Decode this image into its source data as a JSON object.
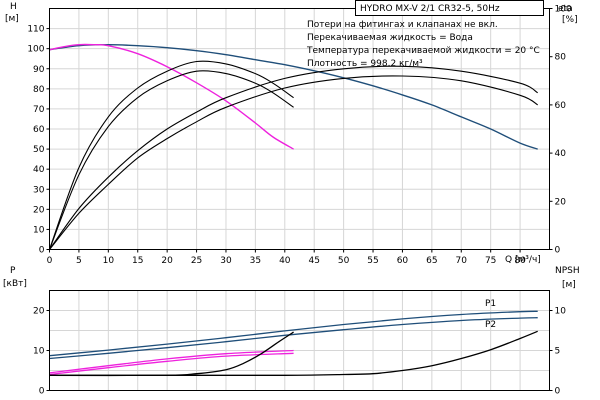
{
  "header": {
    "title": "HYDRO MX-V 2/1 CR32-5, 50Hz"
  },
  "notes": [
    "Потери на фитингах и клапанах не вкл.",
    "Перекачиваемая жидкость = Вода",
    "Температура перекачиваемой жидкости = 20 °C",
    "Плотность = 998.2 кг/м³"
  ],
  "colors": {
    "two_pump": "#1f4e79",
    "one_pump": "#ee22dd",
    "efficiency": "#000000",
    "npsh": "#000000"
  },
  "chart_data": [
    {
      "type": "line",
      "panel": "top",
      "xlabel": "Q [м³/ч]",
      "x_unit_label": "Q",
      "x_unit": "[м³/ч]",
      "ylabel_left": "H",
      "ylabel_left_unit": "[м]",
      "ylabel_right": "eta",
      "ylabel_right_unit": "[%]",
      "xlim": [
        0,
        85
      ],
      "ylim_left": [
        0,
        120
      ],
      "ylim_right": [
        0,
        100
      ],
      "xticks": [
        0,
        5,
        10,
        15,
        20,
        25,
        30,
        35,
        40,
        45,
        50,
        55,
        60,
        65,
        70,
        75,
        80
      ],
      "yticks_left": [
        0,
        10,
        20,
        30,
        40,
        50,
        60,
        70,
        80,
        90,
        100,
        110
      ],
      "yticks_right": [
        0,
        20,
        40,
        60,
        80,
        100
      ],
      "grid": true,
      "series": [
        {
          "key": "h_two_pumps",
          "axis": "left",
          "color": "#1f4e79",
          "x": [
            0,
            5,
            10,
            15,
            20,
            25,
            30,
            35,
            40,
            45,
            50,
            55,
            60,
            65,
            70,
            75,
            80,
            83
          ],
          "y": [
            99.5,
            101.5,
            102,
            101.5,
            100.5,
            99,
            97,
            94.5,
            92,
            89,
            85.5,
            81.5,
            77,
            72,
            66,
            60,
            53,
            50
          ]
        },
        {
          "key": "h_one_pump",
          "axis": "left",
          "color": "#ee22dd",
          "x": [
            0,
            2.5,
            5,
            7.5,
            10,
            15,
            20,
            25,
            30,
            35,
            38,
            41.5
          ],
          "y": [
            99.5,
            101,
            102,
            102,
            101.5,
            97.5,
            91,
            83,
            74,
            63,
            56,
            50
          ]
        },
        {
          "key": "eta_one_pump_a",
          "axis": "right",
          "color": "#000000",
          "x": [
            0,
            5,
            10,
            15,
            20,
            25,
            30,
            35,
            38,
            41.5
          ],
          "y": [
            0,
            34,
            55,
            67,
            74,
            78,
            77,
            73,
            69,
            63
          ]
        },
        {
          "key": "eta_one_pump_b",
          "axis": "right",
          "color": "#000000",
          "x": [
            0,
            5,
            10,
            15,
            20,
            25,
            30,
            35,
            38,
            41.5
          ],
          "y": [
            0,
            31,
            51,
            63,
            70,
            74,
            73,
            69,
            65,
            59
          ]
        },
        {
          "key": "eta_two_pumps_a",
          "axis": "right",
          "color": "#000000",
          "x": [
            0,
            5,
            10,
            15,
            20,
            25,
            30,
            40,
            50,
            60,
            70,
            80,
            83
          ],
          "y": [
            0,
            17,
            30,
            41,
            50,
            57,
            63,
            71,
            75,
            76,
            74,
            69,
            65
          ]
        },
        {
          "key": "eta_two_pumps_b",
          "axis": "right",
          "color": "#000000",
          "x": [
            0,
            5,
            10,
            15,
            20,
            25,
            30,
            40,
            50,
            60,
            70,
            80,
            83
          ],
          "y": [
            0,
            15,
            27,
            38,
            46,
            53,
            59,
            67,
            71,
            72,
            70,
            64,
            60
          ]
        }
      ]
    },
    {
      "type": "line",
      "panel": "bottom",
      "ylabel_left": "P",
      "ylabel_left_unit": "[кВт]",
      "ylabel_right": "NPSH",
      "ylabel_right_unit": "[м]",
      "xlim": [
        0,
        85
      ],
      "ylim_left": [
        0,
        25
      ],
      "ylim_right": [
        0,
        12.5
      ],
      "yticks_left": [
        0,
        10,
        20
      ],
      "yticks_right": [
        0,
        5,
        10
      ],
      "grid": true,
      "labels": [
        "P1",
        "P2"
      ],
      "series": [
        {
          "key": "p1_two_pumps",
          "axis": "left",
          "color": "#1f4e79",
          "x": [
            0,
            10,
            20,
            30,
            40,
            50,
            60,
            70,
            80,
            83
          ],
          "y": [
            8.7,
            10.1,
            11.6,
            13.2,
            14.9,
            16.5,
            17.9,
            19.0,
            19.7,
            19.8
          ]
        },
        {
          "key": "p2_two_pumps",
          "axis": "left",
          "color": "#1f4e79",
          "x": [
            0,
            10,
            20,
            30,
            40,
            50,
            60,
            70,
            80,
            83
          ],
          "y": [
            8.0,
            9.3,
            10.7,
            12.2,
            13.8,
            15.2,
            16.5,
            17.5,
            18.1,
            18.2
          ]
        },
        {
          "key": "p1_one_pump",
          "axis": "left",
          "color": "#ee22dd",
          "x": [
            0,
            10,
            20,
            30,
            41.5
          ],
          "y": [
            4.4,
            6.2,
            7.9,
            9.2,
            10.0
          ]
        },
        {
          "key": "p2_one_pump",
          "axis": "left",
          "color": "#ee22dd",
          "x": [
            0,
            10,
            20,
            30,
            41.5
          ],
          "y": [
            4.0,
            5.7,
            7.3,
            8.6,
            9.3
          ]
        },
        {
          "key": "npsh_one_pump",
          "axis": "right",
          "color": "#000000",
          "x": [
            0,
            20,
            25,
            30,
            33,
            36,
            39,
            41.5
          ],
          "y": [
            1.9,
            1.9,
            2.1,
            2.6,
            3.4,
            4.6,
            6.1,
            7.3
          ]
        },
        {
          "key": "npsh_two_pumps",
          "axis": "right",
          "color": "#000000",
          "x": [
            0,
            20,
            40,
            50,
            55,
            60,
            65,
            70,
            75,
            80,
            83
          ],
          "y": [
            1.9,
            1.9,
            1.9,
            2.0,
            2.1,
            2.5,
            3.1,
            4.0,
            5.1,
            6.5,
            7.4
          ]
        }
      ]
    }
  ]
}
